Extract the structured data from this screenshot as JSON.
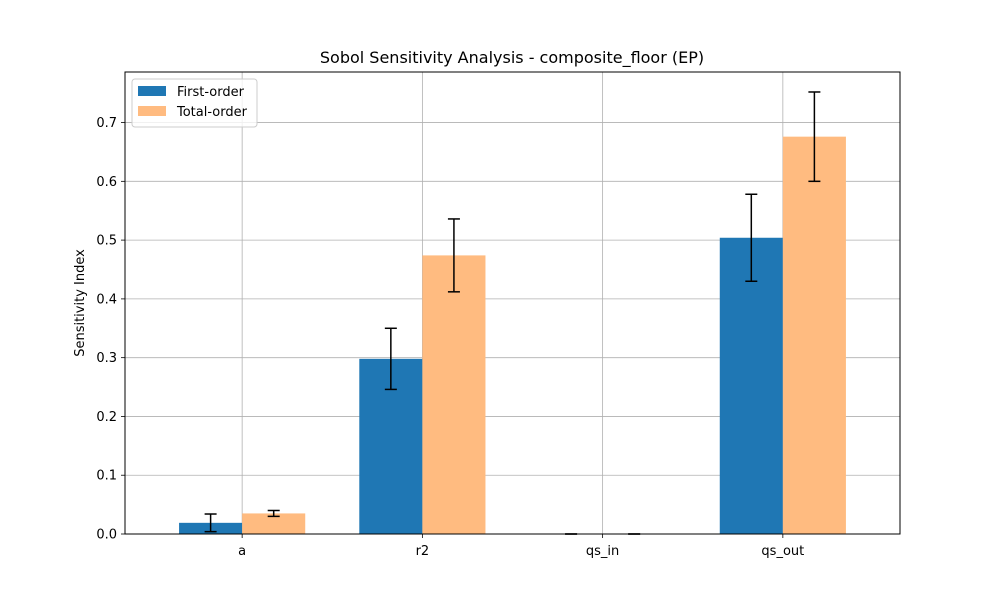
{
  "chart_data": {
    "type": "bar",
    "title": "Sobol Sensitivity Analysis - composite_floor (EP)",
    "xlabel": "",
    "ylabel": "Sensitivity Index",
    "categories": [
      "a",
      "r2",
      "qs_in",
      "qs_out"
    ],
    "ylim": [
      0,
      0.786
    ],
    "yticks": [
      0.0,
      0.1,
      0.2,
      0.3,
      0.4,
      0.5,
      0.6,
      0.7
    ],
    "ytick_labels": [
      "0.0",
      "0.1",
      "0.2",
      "0.3",
      "0.4",
      "0.5",
      "0.6",
      "0.7"
    ],
    "grid": true,
    "legend_position": "top-left",
    "series": [
      {
        "name": "First-order",
        "color": "#1f77b4",
        "values": [
          0.019,
          0.298,
          0.0,
          0.504
        ],
        "errors": [
          0.015,
          0.052,
          0.0,
          0.074
        ]
      },
      {
        "name": "Total-order",
        "color": "#ffbb80",
        "values": [
          0.035,
          0.474,
          0.0,
          0.676
        ],
        "errors": [
          0.005,
          0.062,
          0.0,
          0.076
        ]
      }
    ]
  }
}
